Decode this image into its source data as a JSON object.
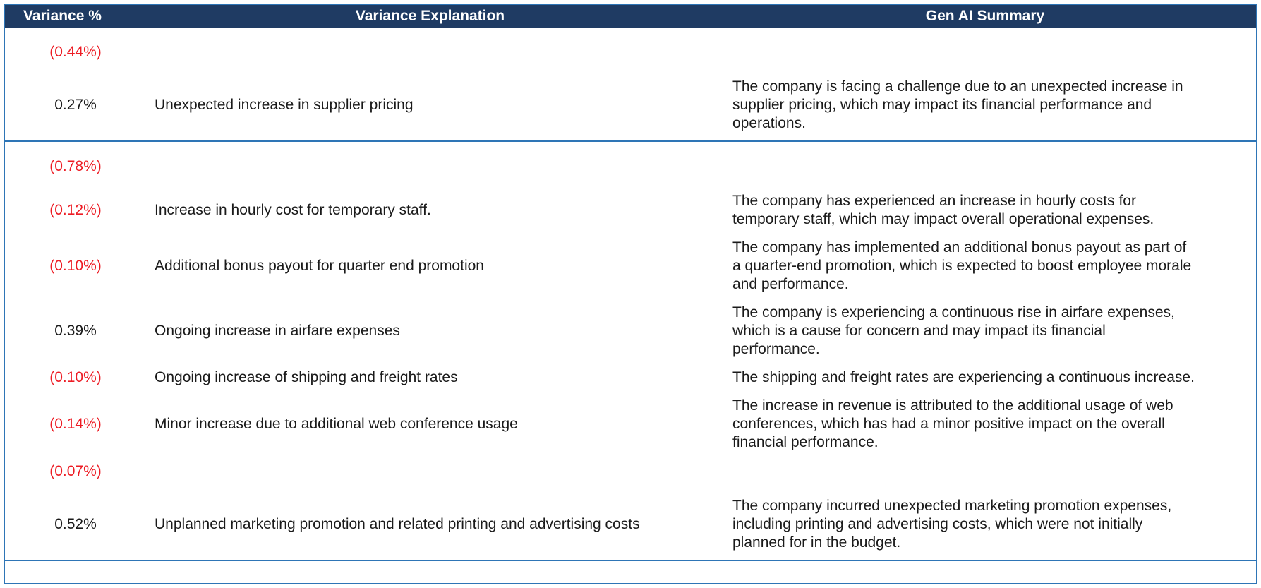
{
  "chart_data": {
    "type": "table",
    "title": "",
    "columns": [
      "Variance %",
      "Variance Explanation",
      "Gen AI Summary"
    ],
    "sections": [
      {
        "rows": [
          {
            "variance": "(0.44%)",
            "negative": true,
            "explanation": "",
            "summary": ""
          },
          {
            "variance": "0.27%",
            "negative": false,
            "explanation": "Unexpected increase in supplier pricing",
            "summary": "The company is facing a challenge due to an unexpected increase in supplier pricing, which may impact its financial performance and operations."
          }
        ]
      },
      {
        "rows": [
          {
            "variance": "(0.78%)",
            "negative": true,
            "explanation": "",
            "summary": ""
          },
          {
            "variance": "(0.12%)",
            "negative": true,
            "explanation": "Increase in hourly cost for temporary staff.",
            "summary": "The company has experienced an increase in hourly costs for temporary staff, which may impact overall operational expenses."
          },
          {
            "variance": "(0.10%)",
            "negative": true,
            "explanation": "Additional bonus payout for quarter end promotion",
            "summary": "The company has implemented an additional bonus payout as part of a quarter-end promotion, which is expected to boost employee morale and performance."
          },
          {
            "variance": "0.39%",
            "negative": false,
            "explanation": "Ongoing increase in airfare expenses",
            "summary": "The company is experiencing a continuous rise in airfare expenses, which is a cause for concern and may impact its financial performance."
          },
          {
            "variance": "(0.10%)",
            "negative": true,
            "explanation": "Ongoing increase of shipping and freight rates",
            "summary": "The shipping and freight rates are experiencing a continuous increase."
          },
          {
            "variance": "(0.14%)",
            "negative": true,
            "explanation": "Minor increase due to additional web conference usage",
            "summary": "The increase in revenue is attributed to the additional usage of web conferences, which has had a minor positive impact on the overall financial performance."
          },
          {
            "variance": "(0.07%)",
            "negative": true,
            "explanation": "",
            "summary": ""
          },
          {
            "variance": "0.52%",
            "negative": false,
            "explanation": "Unplanned marketing promotion and related printing and advertising costs",
            "summary": "The company incurred unexpected marketing promotion expenses, including printing and advertising costs, which were not initially planned for in the budget."
          }
        ]
      }
    ]
  },
  "colors": {
    "header_bg": "#1f3b63",
    "header_text": "#ffffff",
    "border": "#2e75b6",
    "negative": "#ed1c24",
    "body_text": "#1a1a1a"
  }
}
